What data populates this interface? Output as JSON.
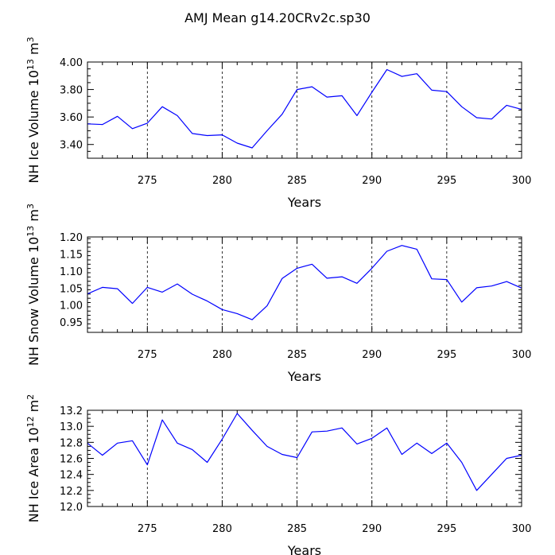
{
  "title": "AMJ Mean g14.20CRv2c.sp30",
  "colors": {
    "line": "#0000ff",
    "frame": "#000000",
    "grid": "#000000",
    "background": "#ffffff"
  },
  "x": [
    271,
    272,
    273,
    274,
    275,
    276,
    277,
    278,
    279,
    280,
    281,
    282,
    283,
    284,
    285,
    286,
    287,
    288,
    289,
    290,
    291,
    292,
    293,
    294,
    295,
    296,
    297,
    298,
    299,
    300
  ],
  "chart_data": [
    {
      "type": "line",
      "xlabel": "Years",
      "ylabel": "NH Ice Volume 10",
      "ylabel_exp": "13",
      "ylabel_unit": " m",
      "ylabel_unit_exp": "3",
      "xlim": [
        271,
        300
      ],
      "ylim": [
        3.3,
        4.0
      ],
      "xticks": [
        275,
        280,
        285,
        290,
        295,
        300
      ],
      "yticks": [
        3.4,
        3.6,
        3.8,
        4.0
      ],
      "yticklabels": [
        "3.40",
        "3.60",
        "3.80",
        "4.00"
      ],
      "grid": "dashed vertical at major x ticks",
      "values": [
        3.55,
        3.545,
        3.605,
        3.515,
        3.555,
        3.675,
        3.61,
        3.48,
        3.465,
        3.47,
        3.41,
        3.375,
        3.5,
        3.62,
        3.8,
        3.82,
        3.745,
        3.755,
        3.61,
        3.78,
        3.945,
        3.895,
        3.915,
        3.795,
        3.785,
        3.675,
        3.595,
        3.585,
        3.685,
        3.655
      ]
    },
    {
      "type": "line",
      "xlabel": "Years",
      "ylabel": "NH Snow Volume 10",
      "ylabel_exp": "13",
      "ylabel_unit": " m",
      "ylabel_unit_exp": "3",
      "xlim": [
        271,
        300
      ],
      "ylim": [
        0.92,
        1.2
      ],
      "xticks": [
        275,
        280,
        285,
        290,
        295,
        300
      ],
      "yticks": [
        0.95,
        1.0,
        1.05,
        1.1,
        1.15,
        1.2
      ],
      "yticklabels": [
        "0.95",
        "1.00",
        "1.05",
        "1.10",
        "1.15",
        "1.20"
      ],
      "grid": "dashed vertical at major x ticks",
      "values": [
        1.033,
        1.052,
        1.048,
        1.005,
        1.052,
        1.038,
        1.062,
        1.032,
        1.012,
        0.987,
        0.975,
        0.957,
        0.998,
        1.078,
        1.108,
        1.12,
        1.079,
        1.083,
        1.064,
        1.108,
        1.158,
        1.175,
        1.164,
        1.077,
        1.075,
        1.009,
        1.051,
        1.056,
        1.069,
        1.05
      ]
    },
    {
      "type": "line",
      "xlabel": "Years",
      "ylabel": "NH Ice Area 10",
      "ylabel_exp": "12",
      "ylabel_unit": " m",
      "ylabel_unit_exp": "2",
      "xlim": [
        271,
        300
      ],
      "ylim": [
        12.0,
        13.2
      ],
      "xticks": [
        275,
        280,
        285,
        290,
        295,
        300
      ],
      "yticks": [
        12.0,
        12.2,
        12.4,
        12.6,
        12.8,
        13.0,
        13.2
      ],
      "yticklabels": [
        "12.0",
        "12.2",
        "12.4",
        "12.6",
        "12.8",
        "13.0",
        "13.2"
      ],
      "grid": "dashed vertical at major x ticks",
      "values": [
        12.79,
        12.64,
        12.79,
        12.82,
        12.52,
        13.08,
        12.79,
        12.71,
        12.55,
        12.84,
        13.16,
        12.95,
        12.75,
        12.65,
        12.61,
        12.93,
        12.94,
        12.98,
        12.78,
        12.85,
        12.98,
        12.65,
        12.79,
        12.66,
        12.79,
        12.55,
        12.2,
        12.4,
        12.6,
        12.64
      ]
    }
  ]
}
